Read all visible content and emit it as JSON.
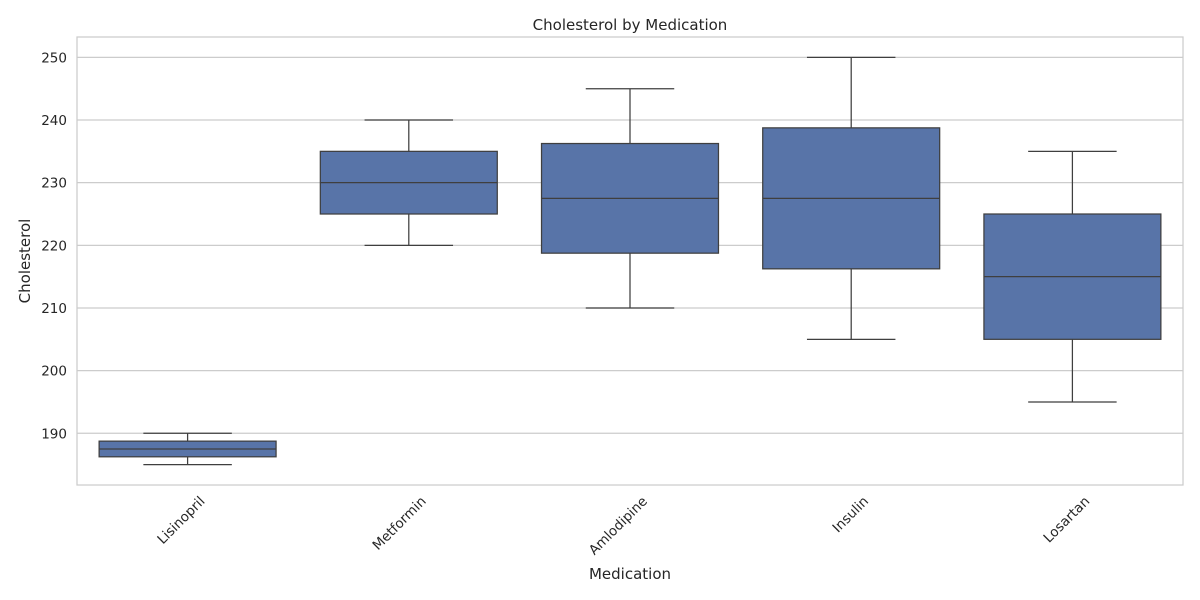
{
  "chart_data": {
    "type": "box",
    "title": "Cholesterol by Medication",
    "xlabel": "Medication",
    "ylabel": "Cholesterol",
    "ylim": [
      181.75,
      253.25
    ],
    "yticks": [
      190,
      200,
      210,
      220,
      230,
      240,
      250
    ],
    "grid": true,
    "categories": [
      "Lisinopril",
      "Metformin",
      "Amlodipine",
      "Insulin",
      "Losartan"
    ],
    "boxes": [
      {
        "category": "Lisinopril",
        "whisker_low": 185,
        "q1": 186.25,
        "median": 187.5,
        "q3": 188.75,
        "whisker_high": 190
      },
      {
        "category": "Metformin",
        "whisker_low": 220,
        "q1": 225,
        "median": 230,
        "q3": 235,
        "whisker_high": 240
      },
      {
        "category": "Amlodipine",
        "whisker_low": 210,
        "q1": 218.75,
        "median": 227.5,
        "q3": 236.25,
        "whisker_high": 245
      },
      {
        "category": "Insulin",
        "whisker_low": 205,
        "q1": 216.25,
        "median": 227.5,
        "q3": 238.75,
        "whisker_high": 250
      },
      {
        "category": "Losartan",
        "whisker_low": 195,
        "q1": 205,
        "median": 215,
        "q3": 225,
        "whisker_high": 235
      }
    ],
    "colors": {
      "box": "#5874a8",
      "line": "#3f3f3f",
      "grid": "#cccccc",
      "frame": "#cccccc"
    }
  }
}
